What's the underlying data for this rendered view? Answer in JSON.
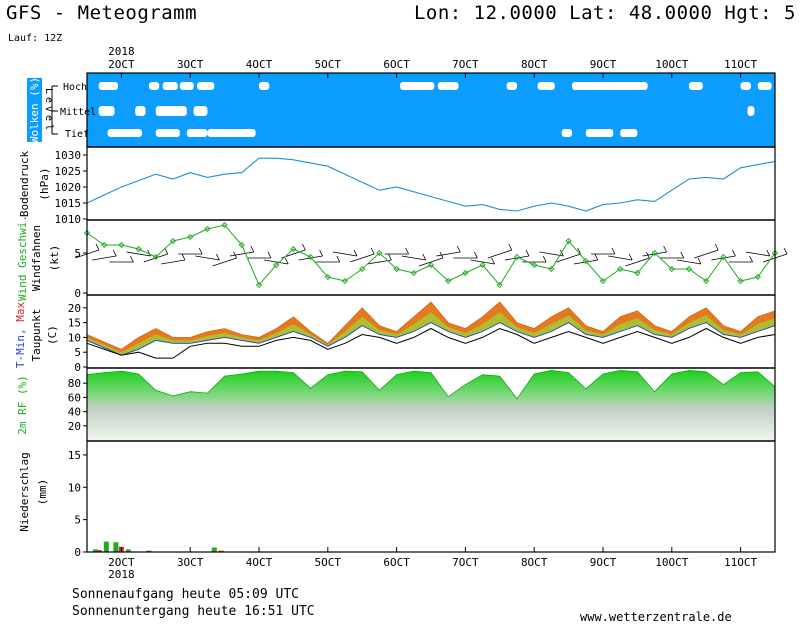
{
  "header": {
    "title": "GFS - Meteogramm",
    "coords": "Lon: 12.0000 Lat: 48.0000 Hgt: 5",
    "run": "Lauf: 12Z"
  },
  "footer": {
    "sunrise": "Sonnenaufgang heute 05:09 UTC",
    "sunset": "Sonnenuntergang heute 16:51 UTC",
    "site": "www.wetterzentrale.de"
  },
  "colors": {
    "cloud_bg": "#0c9dff",
    "cloud": "#ffffff",
    "pressure_line": "#1f8fd6",
    "wind_line": "#22aa22",
    "tmax_fill": "#e8781e",
    "tmin_fill": "#9ad63a",
    "dew_line": "#000000",
    "humidity": "#22cc22",
    "precip_rain": "#22aa22",
    "precip_conv": "#dd3322",
    "label_green": "#22aa22",
    "label_red": "#dd2222",
    "label_blue": "#2244cc"
  },
  "chart_data": {
    "type": "meteogram",
    "x_ticks": [
      "2OCT",
      "3OCT",
      "4OCT",
      "5OCT",
      "6OCT",
      "7OCT",
      "8OCT",
      "9OCT",
      "10OCT",
      "11OCT"
    ],
    "x_tick_labels": [
      "2OCT",
      "3OCT",
      "4OCT",
      "5OCT",
      "6OCT",
      "7OCT",
      "8OCT",
      "9OCT",
      "10OCT",
      "11OCT"
    ],
    "year_label": "2018",
    "panels": [
      {
        "id": "clouds",
        "ylabel": "Wolken (%)",
        "level_label": "Level",
        "levels": [
          "Hoch",
          "Mittel",
          "Tief"
        ],
        "clear_patches": {
          "Hoch": [
            [
              1.67,
              1.95
            ],
            [
              2.4,
              2.55
            ],
            [
              2.6,
              2.82
            ],
            [
              2.85,
              3.05
            ],
            [
              3.1,
              3.35
            ],
            [
              4.0,
              4.15
            ],
            [
              6.05,
              6.55
            ],
            [
              6.6,
              6.9
            ],
            [
              7.6,
              7.75
            ],
            [
              8.05,
              8.3
            ],
            [
              8.55,
              9.65
            ],
            [
              10.25,
              10.45
            ],
            [
              11.0,
              11.15
            ],
            [
              11.25,
              11.45
            ]
          ],
          "Mittel": [
            [
              1.67,
              1.9
            ],
            [
              2.2,
              2.35
            ],
            [
              2.5,
              2.95
            ],
            [
              3.05,
              3.25
            ],
            [
              11.1,
              11.2
            ]
          ],
          "Tief": [
            [
              1.8,
              2.3
            ],
            [
              2.5,
              2.85
            ],
            [
              2.95,
              3.25
            ],
            [
              3.25,
              3.95
            ],
            [
              3.4,
              3.95
            ],
            [
              8.4,
              8.55
            ],
            [
              8.75,
              9.15
            ],
            [
              9.25,
              9.5
            ]
          ]
        }
      },
      {
        "id": "pressure",
        "ylabel": "Bodendruck",
        "unit": "(hPa)",
        "yticks": [
          1010,
          1015,
          1020,
          1025,
          1030
        ],
        "ylim": [
          1010,
          1030
        ],
        "x": [
          1.5,
          2.0,
          2.5,
          2.75,
          3.0,
          3.25,
          3.5,
          3.75,
          4.0,
          4.25,
          4.5,
          5.0,
          5.25,
          5.5,
          5.75,
          6.0,
          6.5,
          6.75,
          7.0,
          7.25,
          7.5,
          7.75,
          8.0,
          8.25,
          8.5,
          8.75,
          9.0,
          9.25,
          9.5,
          9.75,
          10.0,
          10.25,
          10.5,
          10.75,
          11.0,
          11.25,
          11.5
        ],
        "values": [
          1015,
          1020,
          1024,
          1022.5,
          1024.5,
          1023,
          1024,
          1024.5,
          1029,
          1029,
          1028.5,
          1026.5,
          1024,
          1021.5,
          1019,
          1020,
          1017,
          1015.5,
          1014,
          1014.5,
          1013,
          1012.5,
          1014,
          1015,
          1014,
          1012.5,
          1014.5,
          1015,
          1016,
          1015.5,
          1019,
          1022.5,
          1023,
          1022.5,
          1026,
          1027,
          1028
        ]
      },
      {
        "id": "wind",
        "ylabel_green": "Wind Geschwi.",
        "ylabel_black": "Windfahnen",
        "unit": "(kt)",
        "yticks": [
          0,
          5
        ],
        "ylim": [
          0,
          9
        ],
        "x": [
          1.5,
          1.75,
          2.0,
          2.25,
          2.5,
          2.75,
          3.0,
          3.25,
          3.5,
          3.75,
          4.0,
          4.25,
          4.5,
          4.75,
          5.0,
          5.25,
          5.5,
          5.75,
          6.0,
          6.25,
          6.5,
          6.75,
          7.0,
          7.25,
          7.5,
          7.75,
          8.0,
          8.25,
          8.5,
          8.75,
          9.0,
          9.25,
          9.5,
          9.75,
          10.0,
          10.25,
          10.5,
          10.75,
          11.0,
          11.25,
          11.5
        ],
        "values": [
          7.5,
          6.0,
          6.0,
          5.5,
          4.5,
          6.5,
          7.0,
          8.0,
          8.5,
          6.0,
          1.0,
          3.5,
          5.5,
          4.5,
          2.0,
          1.5,
          3.0,
          5.0,
          3.0,
          2.5,
          3.5,
          1.5,
          2.5,
          3.5,
          1.0,
          4.5,
          3.5,
          3.0,
          6.5,
          4.0,
          1.5,
          3.0,
          2.5,
          5.0,
          3.0,
          3.0,
          1.5,
          4.5,
          1.5,
          2.0,
          5.0
        ]
      },
      {
        "id": "temperature",
        "ylabel_blue": "T-Min,",
        "ylabel_red": "Max",
        "ylabel_black": "Taupunkt",
        "unit": "(C)",
        "yticks": [
          0,
          5,
          10,
          15,
          20
        ],
        "ylim": [
          0,
          24
        ],
        "x": [
          1.5,
          2.0,
          2.25,
          2.5,
          2.75,
          3.0,
          3.25,
          3.5,
          3.75,
          4.0,
          4.25,
          4.5,
          4.75,
          5.0,
          5.25,
          5.5,
          5.75,
          6.0,
          6.25,
          6.5,
          6.75,
          7.0,
          7.25,
          7.5,
          7.75,
          8.0,
          8.25,
          8.5,
          8.75,
          9.0,
          9.25,
          9.5,
          9.75,
          10.0,
          10.25,
          10.5,
          10.75,
          11.0,
          11.25,
          11.5
        ],
        "tmax": [
          11,
          6,
          10,
          13,
          10,
          10,
          12,
          13,
          11,
          10,
          13,
          17,
          12,
          8,
          14,
          20,
          14,
          12,
          17,
          22,
          15,
          13,
          17,
          22,
          15,
          13,
          17,
          20,
          14,
          12,
          17,
          19,
          14,
          12,
          17,
          20,
          14,
          12,
          17,
          19
        ],
        "tmin": [
          9,
          4,
          6,
          9,
          8,
          8,
          9,
          10,
          9,
          8,
          10,
          12,
          10,
          7,
          10,
          14,
          11,
          10,
          12,
          15,
          12,
          10,
          12,
          15,
          12,
          10,
          12,
          15,
          11,
          10,
          12,
          14,
          11,
          10,
          13,
          15,
          11,
          10,
          12,
          14
        ],
        "dew": [
          8,
          4,
          5,
          3,
          3,
          7,
          8,
          8,
          7,
          7,
          9,
          10,
          9,
          6,
          8,
          11,
          10,
          8,
          10,
          13,
          10,
          8,
          10,
          13,
          11,
          8,
          10,
          12,
          10,
          8,
          10,
          12,
          10,
          8,
          10,
          13,
          10,
          8,
          10,
          11
        ]
      },
      {
        "id": "humidity",
        "ylabel": "2m RF (%)",
        "yticks": [
          20,
          40,
          60,
          80
        ],
        "ylim": [
          0,
          100
        ],
        "x": [
          1.5,
          1.75,
          2.0,
          2.25,
          2.5,
          2.75,
          3.0,
          3.25,
          3.5,
          3.75,
          4.0,
          4.25,
          4.5,
          4.75,
          5.0,
          5.25,
          5.5,
          5.75,
          6.0,
          6.25,
          6.5,
          6.75,
          7.0,
          7.25,
          7.5,
          7.75,
          8.0,
          8.25,
          8.5,
          8.75,
          9.0,
          9.25,
          9.5,
          9.75,
          10.0,
          10.25,
          10.5,
          10.75,
          11.0,
          11.25,
          11.5
        ],
        "values": [
          92,
          95,
          97,
          93,
          70,
          62,
          68,
          66,
          90,
          93,
          97,
          97,
          95,
          73,
          92,
          97,
          96,
          70,
          92,
          97,
          95,
          61,
          78,
          92,
          90,
          58,
          93,
          98,
          95,
          72,
          93,
          98,
          96,
          68,
          93,
          98,
          96,
          78,
          95,
          96,
          75
        ]
      },
      {
        "id": "precipitation",
        "ylabel": "Niederschlag",
        "unit": "(mm)",
        "yticks": [
          0,
          5,
          10,
          15
        ],
        "ylim": [
          0,
          17
        ],
        "bars": [
          {
            "x": 1.62,
            "value": 0.4,
            "kind": "rain"
          },
          {
            "x": 1.68,
            "value": 0.3,
            "kind": "conv"
          },
          {
            "x": 1.78,
            "value": 1.6,
            "kind": "rain"
          },
          {
            "x": 1.92,
            "value": 1.5,
            "kind": "rain"
          },
          {
            "x": 2.0,
            "value": 0.8,
            "kind": "conv"
          },
          {
            "x": 2.1,
            "value": 0.4,
            "kind": "rain"
          },
          {
            "x": 2.4,
            "value": 0.2,
            "kind": "conv"
          },
          {
            "x": 3.35,
            "value": 0.7,
            "kind": "rain"
          },
          {
            "x": 3.45,
            "value": 0.2,
            "kind": "conv"
          }
        ]
      }
    ]
  }
}
